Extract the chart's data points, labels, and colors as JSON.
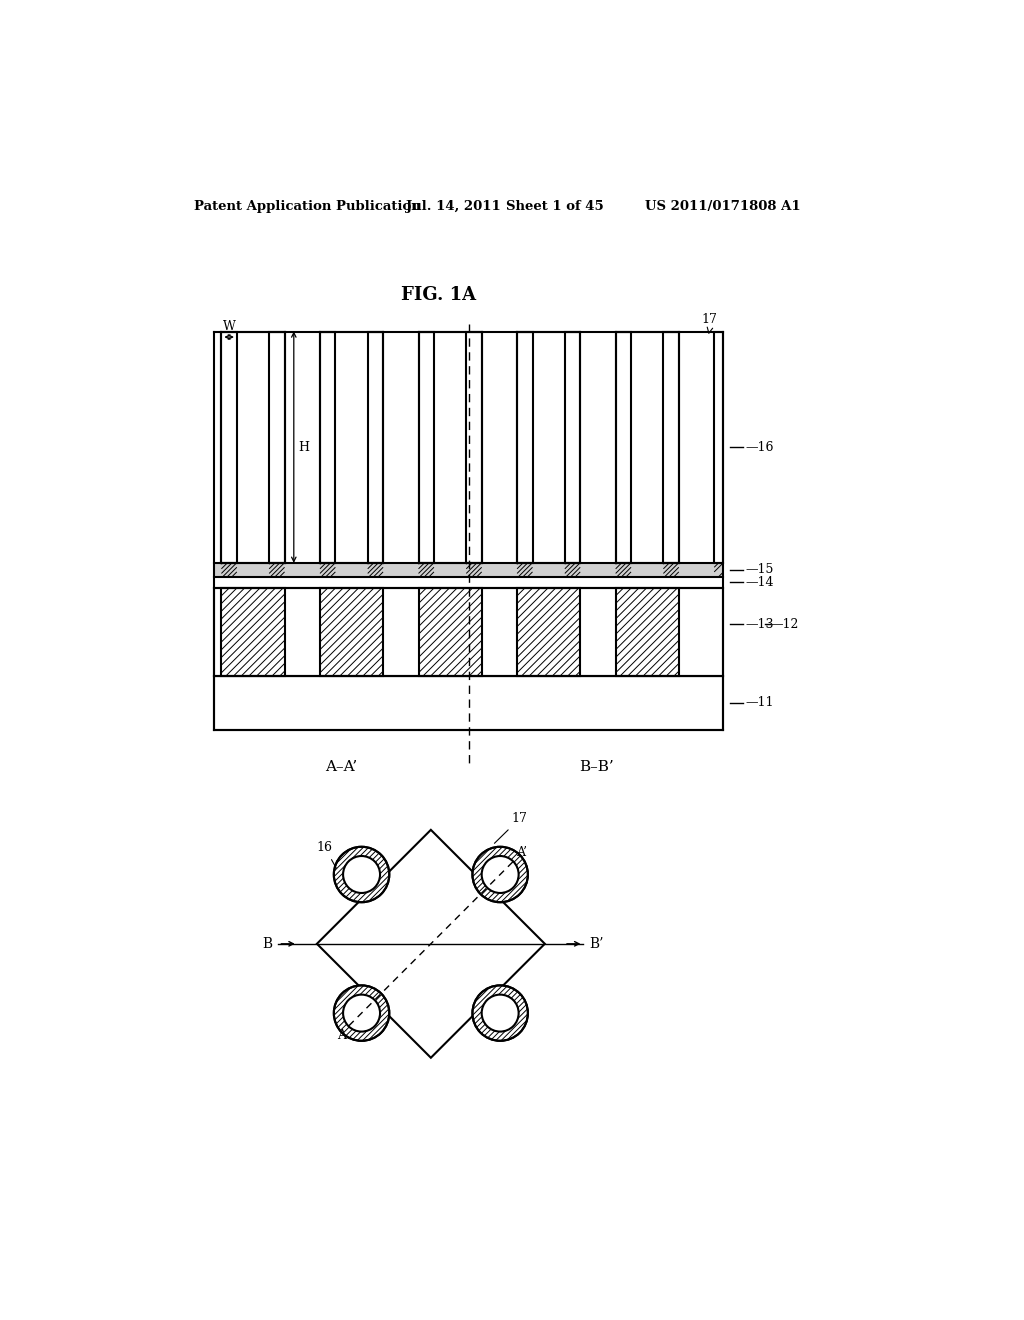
{
  "bg_color": "#ffffff",
  "header_text": "Patent Application Publication",
  "header_date": "Jul. 14, 2011",
  "header_sheet": "Sheet 1 of 45",
  "header_patent": "US 2011/0171808 A1",
  "fig_label": "FIG. 1A",
  "aa_label": "A–A’",
  "bb_label": "B–B’",
  "dim_W": "W",
  "dim_H": "H",
  "layers": [
    "11",
    "12",
    "13",
    "14",
    "15",
    "16",
    "17"
  ]
}
